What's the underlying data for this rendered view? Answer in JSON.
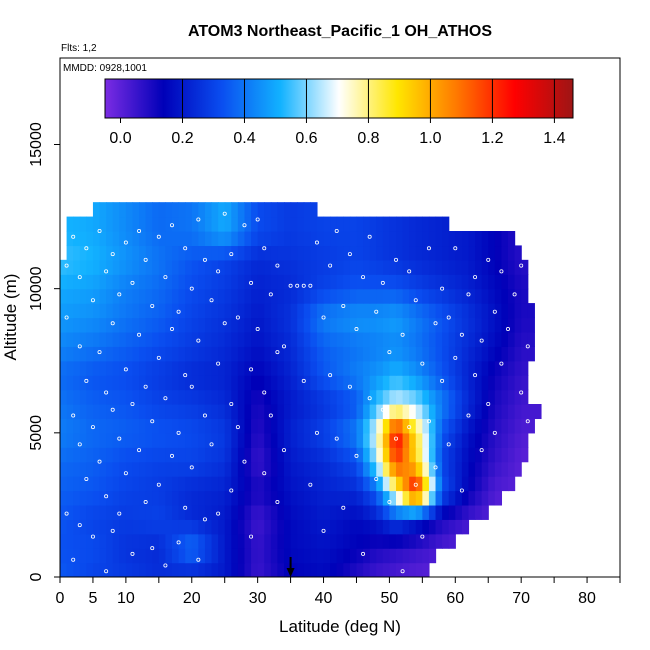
{
  "chart_data": {
    "type": "heatmap",
    "title": "ATOM3 Northeast_Pacific_1 OH_ATHOS",
    "annotations": [
      "Flts: 1,2",
      "MMDD: 0928,1001"
    ],
    "xlabel": "Latitude (deg N)",
    "ylabel": "Altitude (m)",
    "xlim": [
      0,
      85
    ],
    "ylim": [
      0,
      18000
    ],
    "x_tick_labels": [
      "0",
      "5",
      "10",
      "20",
      "30",
      "40",
      "50",
      "60",
      "70",
      "80"
    ],
    "x_tick_values": [
      0,
      5,
      10,
      20,
      30,
      40,
      50,
      60,
      70,
      80
    ],
    "x_minor_ticks": [
      15,
      25,
      35,
      45,
      55,
      65,
      75,
      85
    ],
    "y_tick_labels": [
      "0",
      "5000",
      "10000",
      "15000"
    ],
    "y_tick_values": [
      0,
      5000,
      10000,
      15000
    ],
    "colorbar": {
      "min": -0.05,
      "max": 1.46,
      "tick_values": [
        0.0,
        0.2,
        0.4,
        0.6,
        0.8,
        1.0,
        1.2,
        1.4
      ],
      "tick_labels": [
        "0.0",
        "0.2",
        "0.4",
        "0.6",
        "0.8",
        "1.0",
        "1.2",
        "1.4"
      ],
      "dividers": [
        0.2,
        0.4,
        0.6,
        0.8,
        1.0,
        1.2,
        1.4
      ],
      "colors": [
        "#7b2ce3",
        "#0000b8",
        "#0a4ef0",
        "#12b2ff",
        "#ffffff",
        "#ffe600",
        "#ff7a00",
        "#ff0000",
        "#9e1515"
      ]
    },
    "arrow_latitude": 35,
    "alt_levels": [
      0,
      1000,
      2000,
      3000,
      4000,
      5000,
      6000,
      7000,
      8000,
      9000,
      10000,
      11000,
      12000
    ],
    "alt_bin_m": 500,
    "lat_bin_deg": 1,
    "profile_extents": [
      [
        0,
        56
      ],
      [
        0,
        57
      ],
      [
        0,
        60
      ],
      [
        0,
        62
      ],
      [
        0,
        65
      ],
      [
        0,
        67
      ],
      [
        0,
        69
      ],
      [
        0,
        70
      ],
      [
        0,
        71
      ],
      [
        0,
        71
      ],
      [
        0,
        72
      ],
      [
        0,
        73
      ],
      [
        0,
        71
      ],
      [
        0,
        71
      ],
      [
        0,
        71
      ],
      [
        0,
        72
      ],
      [
        0,
        72
      ],
      [
        0,
        72
      ],
      [
        0,
        72
      ],
      [
        0,
        71
      ],
      [
        0,
        71
      ],
      [
        0,
        71
      ],
      [
        1,
        70
      ],
      [
        1,
        69
      ],
      [
        1,
        59
      ],
      [
        5,
        39
      ]
    ],
    "profiles": [
      {
        "lat": 0,
        "values": [
          0.35,
          0.33,
          0.34,
          0.36,
          0.38,
          0.42,
          0.4,
          0.38,
          0.43,
          0.47,
          0.5,
          0.55,
          0.52
        ]
      },
      {
        "lat": 5,
        "values": [
          0.3,
          0.32,
          0.3,
          0.34,
          0.36,
          0.38,
          0.36,
          0.34,
          0.4,
          0.45,
          0.48,
          0.52,
          0.5
        ]
      },
      {
        "lat": 10,
        "values": [
          0.28,
          0.26,
          0.28,
          0.3,
          0.32,
          0.36,
          0.34,
          0.32,
          0.36,
          0.4,
          0.42,
          0.46,
          0.44
        ]
      },
      {
        "lat": 15,
        "values": [
          0.25,
          0.24,
          0.3,
          0.28,
          0.3,
          0.34,
          0.3,
          0.28,
          0.32,
          0.36,
          0.38,
          0.4,
          0.38
        ]
      },
      {
        "lat": 20,
        "values": [
          0.22,
          0.4,
          0.24,
          0.24,
          0.3,
          0.32,
          0.28,
          0.24,
          0.28,
          0.3,
          0.32,
          0.34,
          0.4
        ]
      },
      {
        "lat": 25,
        "values": [
          0.2,
          0.2,
          0.2,
          0.22,
          0.26,
          0.28,
          0.24,
          0.22,
          0.24,
          0.26,
          0.28,
          0.3,
          0.5
        ]
      },
      {
        "lat": 30,
        "values": [
          0.05,
          0.06,
          0.04,
          0.1,
          0.05,
          0.08,
          0.1,
          0.14,
          0.18,
          0.2,
          0.22,
          0.24,
          0.32
        ]
      },
      {
        "lat": 35,
        "values": [
          0.14,
          0.16,
          0.16,
          0.18,
          0.2,
          0.22,
          0.2,
          0.22,
          0.24,
          0.26,
          0.24,
          0.26,
          0.28
        ]
      },
      {
        "lat": 40,
        "values": [
          0.16,
          0.18,
          0.2,
          0.22,
          0.24,
          0.3,
          0.26,
          0.34,
          0.36,
          0.42,
          0.3,
          0.28,
          0.3
        ]
      },
      {
        "lat": 45,
        "values": [
          0.08,
          0.14,
          0.16,
          0.24,
          0.32,
          0.42,
          0.34,
          0.42,
          0.4,
          0.46,
          0.34,
          0.3,
          0.3
        ]
      },
      {
        "lat": 48,
        "values": [
          0.04,
          0.1,
          0.2,
          0.36,
          0.62,
          0.7,
          0.54,
          0.46,
          0.42,
          0.46,
          0.34,
          0.28,
          0.28
        ]
      },
      {
        "lat": 51,
        "values": [
          0.02,
          0.08,
          0.3,
          0.78,
          1.2,
          1.3,
          0.68,
          0.52,
          0.44,
          0.48,
          0.34,
          0.26,
          0.26
        ]
      },
      {
        "lat": 54,
        "values": [
          0.0,
          0.06,
          0.22,
          1.32,
          0.92,
          0.88,
          0.62,
          0.46,
          0.4,
          0.42,
          0.3,
          0.24,
          0.24
        ]
      },
      {
        "lat": 58,
        "values": [
          0.0,
          0.02,
          0.1,
          0.34,
          0.3,
          0.34,
          0.42,
          0.34,
          0.32,
          0.34,
          0.26,
          0.22,
          0.22
        ]
      },
      {
        "lat": 62,
        "values": [
          0.0,
          0.0,
          0.04,
          0.14,
          0.16,
          0.18,
          0.24,
          0.22,
          0.24,
          0.26,
          0.22,
          0.2,
          0.2
        ]
      },
      {
        "lat": 66,
        "values": [
          0.0,
          0.0,
          0.0,
          0.02,
          0.06,
          0.08,
          0.1,
          0.12,
          0.16,
          0.18,
          0.16,
          0.14,
          0.14
        ]
      },
      {
        "lat": 70,
        "values": [
          0.0,
          0.0,
          0.0,
          0.0,
          0.0,
          0.02,
          0.04,
          0.06,
          0.08,
          0.1,
          0.1,
          0.08,
          0.08
        ]
      }
    ],
    "sample_points": [
      [
        1,
        10800
      ],
      [
        1,
        9000
      ],
      [
        2,
        11800
      ],
      [
        2,
        5600
      ],
      [
        1,
        2200
      ],
      [
        2,
        600
      ],
      [
        3,
        10400
      ],
      [
        3,
        8000
      ],
      [
        3,
        4600
      ],
      [
        3,
        1800
      ],
      [
        4,
        11400
      ],
      [
        4,
        6800
      ],
      [
        4,
        3400
      ],
      [
        5,
        9600
      ],
      [
        5,
        5200
      ],
      [
        5,
        1400
      ],
      [
        6,
        12000
      ],
      [
        6,
        7800
      ],
      [
        6,
        4000
      ],
      [
        7,
        10600
      ],
      [
        7,
        6400
      ],
      [
        7,
        2800
      ],
      [
        7,
        200
      ],
      [
        8,
        11200
      ],
      [
        8,
        8800
      ],
      [
        8,
        5800
      ],
      [
        8,
        1600
      ],
      [
        9,
        9800
      ],
      [
        9,
        4800
      ],
      [
        9,
        2200
      ],
      [
        10,
        11600
      ],
      [
        10,
        7200
      ],
      [
        10,
        3600
      ],
      [
        11,
        10200
      ],
      [
        11,
        6000
      ],
      [
        11,
        800
      ],
      [
        12,
        12000
      ],
      [
        12,
        8400
      ],
      [
        12,
        4400
      ],
      [
        13,
        11000
      ],
      [
        13,
        6600
      ],
      [
        13,
        2600
      ],
      [
        14,
        9400
      ],
      [
        14,
        5400
      ],
      [
        14,
        1000
      ],
      [
        15,
        11800
      ],
      [
        15,
        7600
      ],
      [
        15,
        3200
      ],
      [
        16,
        10400
      ],
      [
        16,
        6200
      ],
      [
        16,
        400
      ],
      [
        17,
        12200
      ],
      [
        17,
        8600
      ],
      [
        17,
        4200
      ],
      [
        18,
        9200
      ],
      [
        18,
        5000
      ],
      [
        18,
        1200
      ],
      [
        19,
        11400
      ],
      [
        19,
        7000
      ],
      [
        19,
        2400
      ],
      [
        20,
        10000
      ],
      [
        20,
        6600
      ],
      [
        20,
        3800
      ],
      [
        21,
        12400
      ],
      [
        21,
        8200
      ],
      [
        21,
        600
      ],
      [
        22,
        11000
      ],
      [
        22,
        5600
      ],
      [
        22,
        2000
      ],
      [
        23,
        9600
      ],
      [
        23,
        4600
      ],
      [
        24,
        10600
      ],
      [
        24,
        7400
      ],
      [
        24,
        2200
      ],
      [
        25,
        12600
      ],
      [
        25,
        8800
      ],
      [
        26,
        11200
      ],
      [
        26,
        6000
      ],
      [
        26,
        3000
      ],
      [
        27,
        9000
      ],
      [
        27,
        5200
      ],
      [
        28,
        12200
      ],
      [
        28,
        4000
      ],
      [
        29,
        10200
      ],
      [
        29,
        7200
      ],
      [
        29,
        1400
      ],
      [
        30,
        12400
      ],
      [
        30,
        8600
      ],
      [
        31,
        11400
      ],
      [
        31,
        6400
      ],
      [
        31,
        3600
      ],
      [
        32,
        9800
      ],
      [
        32,
        5600
      ],
      [
        33,
        10800
      ],
      [
        33,
        2600
      ],
      [
        33,
        7800
      ],
      [
        34,
        8000
      ],
      [
        34,
        4400
      ],
      [
        35,
        10100
      ],
      [
        36,
        10100
      ],
      [
        37,
        10100
      ],
      [
        37,
        6800
      ],
      [
        38,
        10100
      ],
      [
        38,
        3200
      ],
      [
        39,
        11600
      ],
      [
        39,
        5000
      ],
      [
        40,
        9000
      ],
      [
        40,
        1600
      ],
      [
        41,
        10800
      ],
      [
        41,
        7000
      ],
      [
        42,
        12000
      ],
      [
        42,
        4800
      ],
      [
        43,
        9400
      ],
      [
        43,
        2400
      ],
      [
        44,
        11200
      ],
      [
        44,
        6600
      ],
      [
        45,
        8600
      ],
      [
        45,
        4200
      ],
      [
        46,
        10400
      ],
      [
        46,
        800
      ],
      [
        47,
        11800
      ],
      [
        47,
        6200
      ],
      [
        48,
        9200
      ],
      [
        48,
        3400
      ],
      [
        49,
        10200
      ],
      [
        49,
        5800
      ],
      [
        50,
        7800
      ],
      [
        50,
        2600
      ],
      [
        51,
        11000
      ],
      [
        51,
        4800
      ],
      [
        52,
        8400
      ],
      [
        52,
        200
      ],
      [
        53,
        10600
      ],
      [
        53,
        5200
      ],
      [
        54,
        9600
      ],
      [
        54,
        3200
      ],
      [
        55,
        7400
      ],
      [
        55,
        1400
      ],
      [
        56,
        11400
      ],
      [
        56,
        5400
      ],
      [
        57,
        8800
      ],
      [
        57,
        3800
      ],
      [
        58,
        10000
      ],
      [
        58,
        6800
      ],
      [
        59,
        9000
      ],
      [
        59,
        4600
      ],
      [
        60,
        11400
      ],
      [
        60,
        7600
      ],
      [
        61,
        8400
      ],
      [
        61,
        3000
      ],
      [
        62,
        9800
      ],
      [
        62,
        5600
      ],
      [
        63,
        10400
      ],
      [
        63,
        7000
      ],
      [
        64,
        8200
      ],
      [
        64,
        4400
      ],
      [
        65,
        11000
      ],
      [
        65,
        6000
      ],
      [
        66,
        9200
      ],
      [
        66,
        5000
      ],
      [
        67,
        10600
      ],
      [
        67,
        7400
      ],
      [
        68,
        8600
      ],
      [
        69,
        9800
      ],
      [
        70,
        10800
      ],
      [
        70,
        6400
      ],
      [
        71,
        8000
      ],
      [
        71,
        5400
      ]
    ]
  }
}
